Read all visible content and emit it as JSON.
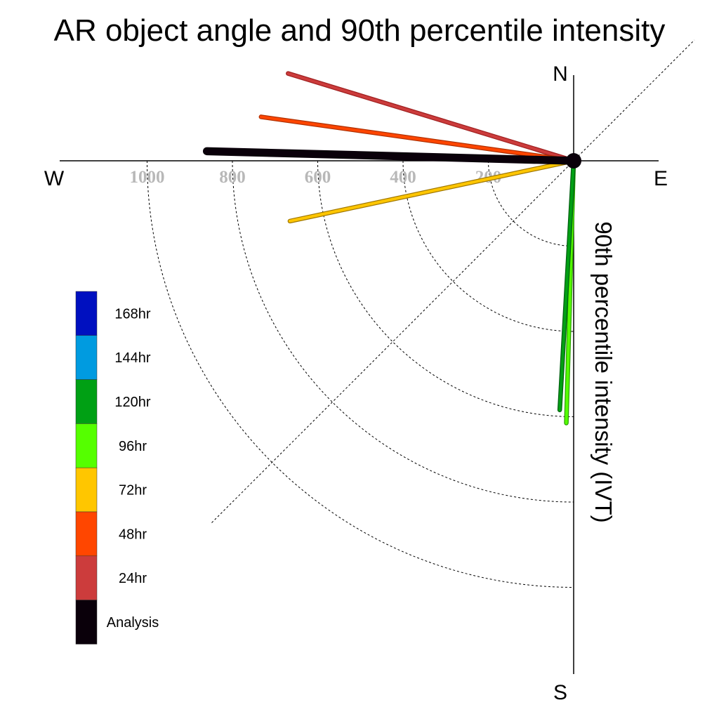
{
  "chart_data": {
    "type": "polar-line",
    "title": "AR object angle and 90th percentile intensity",
    "radial_axis_label": "90th percentile intensity (IVT)",
    "compass": {
      "north": "N",
      "south": "S",
      "east": "E",
      "west": "W"
    },
    "radial_ticks": [
      200,
      400,
      600,
      800,
      1000
    ],
    "radial_range": [
      0,
      1200
    ],
    "grid": true,
    "legend_placement": "left",
    "legend": [
      {
        "label": "168hr",
        "color": "#0010c0"
      },
      {
        "label": "144hr",
        "color": "#009be0"
      },
      {
        "label": "120hr",
        "color": "#00a014"
      },
      {
        "label": "96hr",
        "color": "#55ff00"
      },
      {
        "label": "72hr",
        "color": "#ffc600"
      },
      {
        "label": "48hr",
        "color": "#ff4600"
      },
      {
        "label": "24hr",
        "color": "#cc3c3c"
      },
      {
        "label": "Analysis",
        "color": "#0a000a"
      }
    ],
    "series": [
      {
        "name": "24hr",
        "angle_deg": 163,
        "intensity": 700,
        "color": "#cc3c3c",
        "outline": "#a02020",
        "width": 5
      },
      {
        "name": "48hr",
        "angle_deg": 172,
        "intensity": 740,
        "color": "#ff4600",
        "outline": "#b03000",
        "width": 5
      },
      {
        "name": "72hr",
        "angle_deg": 192,
        "intensity": 680,
        "color": "#ffc600",
        "outline": "#a07800",
        "width": 5
      },
      {
        "name": "Analysis",
        "angle_deg": 178.5,
        "intensity": 860,
        "color": "#0a000a",
        "outline": "#0a000a",
        "width": 10
      },
      {
        "name": "96hr",
        "angle_deg": 268.4,
        "intensity": 615,
        "color": "#55ff00",
        "outline": "#2aa000",
        "width": 5
      },
      {
        "name": "120hr",
        "angle_deg": 266.8,
        "intensity": 585,
        "color": "#00a014",
        "outline": "#006010",
        "width": 5
      }
    ]
  }
}
